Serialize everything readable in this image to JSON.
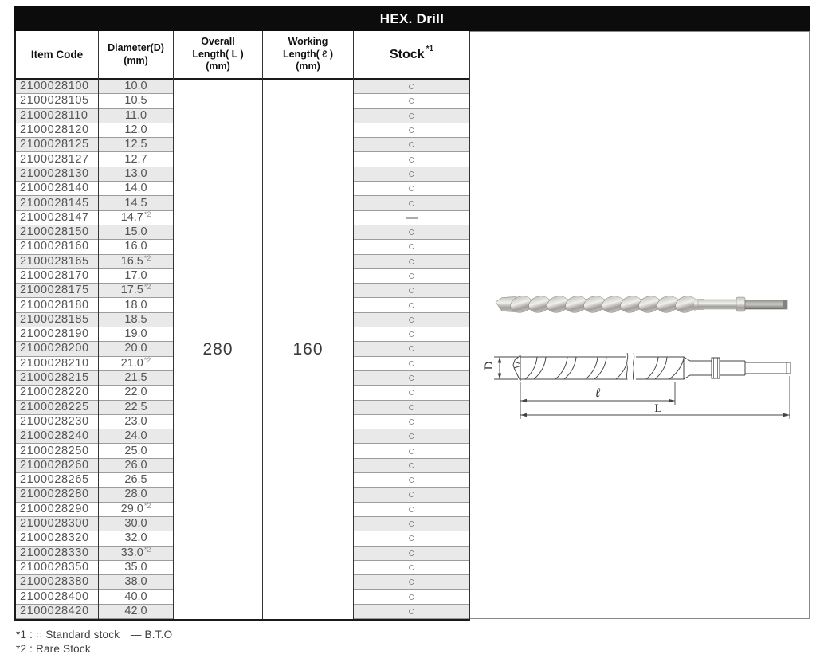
{
  "title": "HEX. Drill",
  "table": {
    "headers": {
      "item_code": "Item Code",
      "diameter_line1": "Diameter(D)",
      "diameter_line2": "(mm)",
      "overall_line1": "Overall",
      "overall_line2": "Length( L )",
      "overall_line3": "(mm)",
      "working_line1": "Working",
      "working_line2": "Length( ℓ )",
      "working_line3": "(mm)",
      "stock": "Stock",
      "stock_note": "*1"
    },
    "merged": {
      "overall_length": "280",
      "working_length": "160"
    },
    "rows": [
      {
        "code": "2100028100",
        "diameter": "10.0",
        "note": "",
        "stock": "○"
      },
      {
        "code": "2100028105",
        "diameter": "10.5",
        "note": "",
        "stock": "○"
      },
      {
        "code": "2100028110",
        "diameter": "11.0",
        "note": "",
        "stock": "○"
      },
      {
        "code": "2100028120",
        "diameter": "12.0",
        "note": "",
        "stock": "○"
      },
      {
        "code": "2100028125",
        "diameter": "12.5",
        "note": "",
        "stock": "○"
      },
      {
        "code": "2100028127",
        "diameter": "12.7",
        "note": "",
        "stock": "○"
      },
      {
        "code": "2100028130",
        "diameter": "13.0",
        "note": "",
        "stock": "○"
      },
      {
        "code": "2100028140",
        "diameter": "14.0",
        "note": "",
        "stock": "○"
      },
      {
        "code": "2100028145",
        "diameter": "14.5",
        "note": "",
        "stock": "○"
      },
      {
        "code": "2100028147",
        "diameter": "14.7",
        "note": "*2",
        "stock": "—"
      },
      {
        "code": "2100028150",
        "diameter": "15.0",
        "note": "",
        "stock": "○"
      },
      {
        "code": "2100028160",
        "diameter": "16.0",
        "note": "",
        "stock": "○"
      },
      {
        "code": "2100028165",
        "diameter": "16.5",
        "note": "*2",
        "stock": "○"
      },
      {
        "code": "2100028170",
        "diameter": "17.0",
        "note": "",
        "stock": "○"
      },
      {
        "code": "2100028175",
        "diameter": "17.5",
        "note": "*2",
        "stock": "○"
      },
      {
        "code": "2100028180",
        "diameter": "18.0",
        "note": "",
        "stock": "○"
      },
      {
        "code": "2100028185",
        "diameter": "18.5",
        "note": "",
        "stock": "○"
      },
      {
        "code": "2100028190",
        "diameter": "19.0",
        "note": "",
        "stock": "○"
      },
      {
        "code": "2100028200",
        "diameter": "20.0",
        "note": "",
        "stock": "○"
      },
      {
        "code": "2100028210",
        "diameter": "21.0",
        "note": "*2",
        "stock": "○"
      },
      {
        "code": "2100028215",
        "diameter": "21.5",
        "note": "",
        "stock": "○"
      },
      {
        "code": "2100028220",
        "diameter": "22.0",
        "note": "",
        "stock": "○"
      },
      {
        "code": "2100028225",
        "diameter": "22.5",
        "note": "",
        "stock": "○"
      },
      {
        "code": "2100028230",
        "diameter": "23.0",
        "note": "",
        "stock": "○"
      },
      {
        "code": "2100028240",
        "diameter": "24.0",
        "note": "",
        "stock": "○"
      },
      {
        "code": "2100028250",
        "diameter": "25.0",
        "note": "",
        "stock": "○"
      },
      {
        "code": "2100028260",
        "diameter": "26.0",
        "note": "",
        "stock": "○"
      },
      {
        "code": "2100028265",
        "diameter": "26.5",
        "note": "",
        "stock": "○"
      },
      {
        "code": "2100028280",
        "diameter": "28.0",
        "note": "",
        "stock": "○"
      },
      {
        "code": "2100028290",
        "diameter": "29.0",
        "note": "*2",
        "stock": "○"
      },
      {
        "code": "2100028300",
        "diameter": "30.0",
        "note": "",
        "stock": "○"
      },
      {
        "code": "2100028320",
        "diameter": "32.0",
        "note": "",
        "stock": "○"
      },
      {
        "code": "2100028330",
        "diameter": "33.0",
        "note": "*2",
        "stock": "○"
      },
      {
        "code": "2100028350",
        "diameter": "35.0",
        "note": "",
        "stock": "○"
      },
      {
        "code": "2100028380",
        "diameter": "38.0",
        "note": "",
        "stock": "○"
      },
      {
        "code": "2100028400",
        "diameter": "40.0",
        "note": "",
        "stock": "○"
      },
      {
        "code": "2100028420",
        "diameter": "42.0",
        "note": "",
        "stock": "○"
      }
    ]
  },
  "diagram": {
    "d_label": "D",
    "working_label": "ℓ",
    "overall_label": "L"
  },
  "footnotes": {
    "line1": "*1 : ○ Standard stock　— B.T.O",
    "line2": "*2 : Rare Stock"
  },
  "colors": {
    "title_bg": "#0c0c0c",
    "title_text": "#ffffff",
    "row_stripe": "#e9e9e9",
    "border_dark": "#1a1a1a",
    "border_column": "#333333",
    "border_row": "#9c9c9c",
    "data_text": "#555555",
    "header_text": "#111111"
  }
}
